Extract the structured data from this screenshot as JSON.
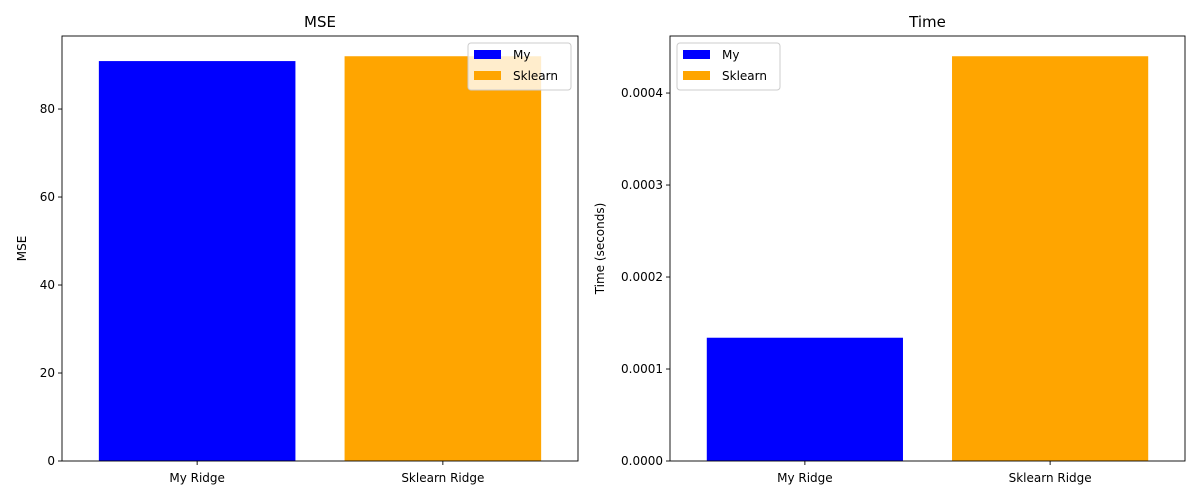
{
  "chart_data": [
    {
      "type": "bar",
      "title": "MSE",
      "ylabel": "MSE",
      "xlabel": "",
      "categories": [
        "My Ridge",
        "Sklearn Ridge"
      ],
      "series": [
        {
          "name": "My",
          "values": [
            90.9,
            0
          ],
          "color": "#0000ff"
        },
        {
          "name": "Sklearn",
          "values": [
            0,
            92.0
          ],
          "color": "#ffa500"
        }
      ],
      "ylim": [
        0,
        96.6
      ],
      "yticks": [
        0,
        20,
        40,
        60,
        80
      ],
      "ytick_labels": [
        "0",
        "20",
        "40",
        "60",
        "80"
      ],
      "legend": "top-right",
      "grid": false
    },
    {
      "type": "bar",
      "title": "Time",
      "ylabel": "Time (seconds)",
      "xlabel": "",
      "categories": [
        "My Ridge",
        "Sklearn Ridge"
      ],
      "series": [
        {
          "name": "My",
          "values": [
            0.000134,
            0
          ],
          "color": "#0000ff"
        },
        {
          "name": "Sklearn",
          "values": [
            0,
            0.00044
          ],
          "color": "#ffa500"
        }
      ],
      "ylim": [
        0,
        0.000462
      ],
      "yticks": [
        0,
        0.0001,
        0.0002,
        0.0003,
        0.0004
      ],
      "ytick_labels": [
        "0.0000",
        "0.0001",
        "0.0002",
        "0.0003",
        "0.0004"
      ],
      "legend": "top-left",
      "grid": false
    }
  ]
}
